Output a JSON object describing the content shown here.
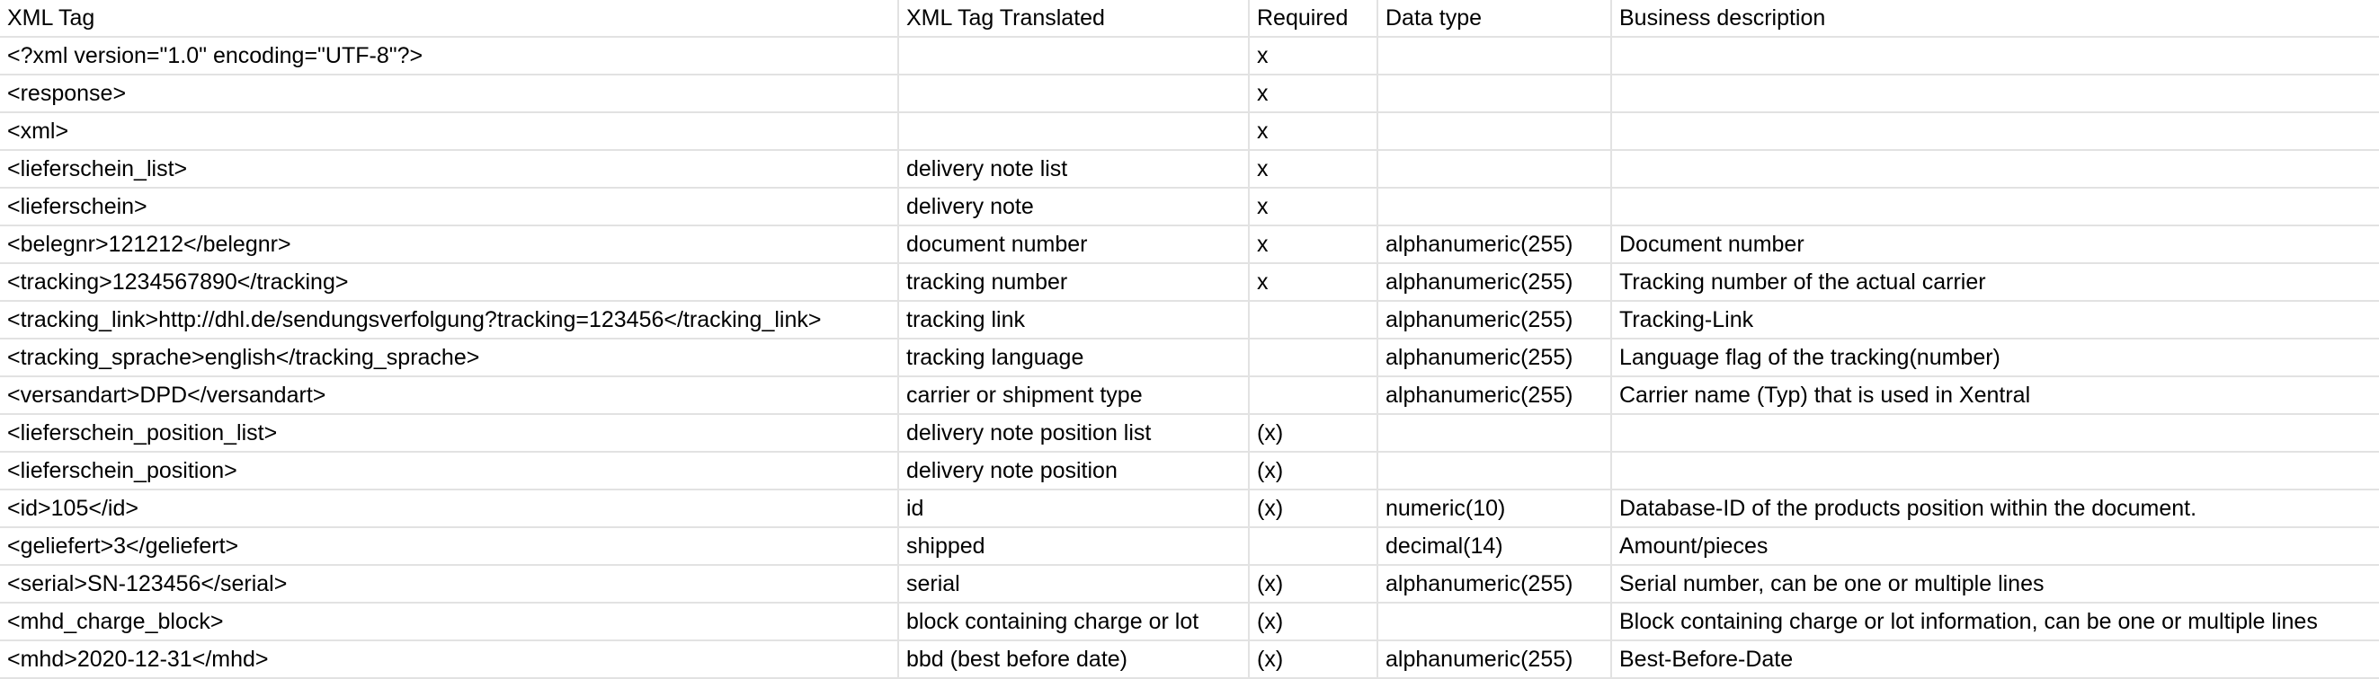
{
  "headers": [
    "XML Tag",
    "XML Tag Translated",
    "Required",
    "Data type",
    "Business description"
  ],
  "rows": [
    [
      "<?xml version=\"1.0\" encoding=\"UTF-8\"?>",
      "",
      "x",
      "",
      ""
    ],
    [
      "<response>",
      "",
      "x",
      "",
      ""
    ],
    [
      "<xml>",
      "",
      "x",
      "",
      ""
    ],
    [
      "<lieferschein_list>",
      "delivery note list",
      "x",
      "",
      ""
    ],
    [
      "<lieferschein>",
      "delivery note",
      "x",
      "",
      ""
    ],
    [
      "<belegnr>121212</belegnr>",
      "document number",
      "x",
      "alphanumeric(255)",
      "Document number"
    ],
    [
      "<tracking>1234567890</tracking>",
      "tracking number",
      "x",
      "alphanumeric(255)",
      "Tracking number of the actual carrier"
    ],
    [
      "<tracking_link>http://dhl.de/sendungsverfolgung?tracking=123456</tracking_link>",
      "tracking link",
      "",
      "alphanumeric(255)",
      "Tracking-Link"
    ],
    [
      "<tracking_sprache>english</tracking_sprache>",
      "tracking language",
      "",
      "alphanumeric(255)",
      "Language flag of the tracking(number)"
    ],
    [
      "<versandart>DPD</versandart>",
      "carrier or shipment type",
      "",
      "alphanumeric(255)",
      "Carrier name (Typ) that is used in Xentral"
    ],
    [
      "<lieferschein_position_list>",
      "delivery note position list",
      "(x)",
      "",
      ""
    ],
    [
      "<lieferschein_position>",
      "delivery note position",
      "(x)",
      "",
      ""
    ],
    [
      "<id>105</id>",
      "id",
      "(x)",
      "numeric(10)",
      "Database-ID of the products position within the document."
    ],
    [
      "<geliefert>3</geliefert>",
      "shipped",
      "",
      "decimal(14)",
      "Amount/pieces"
    ],
    [
      "<serial>SN-123456</serial>",
      "serial",
      "(x)",
      "alphanumeric(255)",
      "Serial number, can be one or multiple lines"
    ],
    [
      "<mhd_charge_block>",
      "block containing charge or lot",
      "(x)",
      "",
      "Block containing charge or lot information, can be one or multiple lines"
    ],
    [
      "<mhd>2020-12-31</mhd>",
      "bbd (best before date)",
      "(x)",
      "alphanumeric(255)",
      "Best-Before-Date"
    ]
  ]
}
